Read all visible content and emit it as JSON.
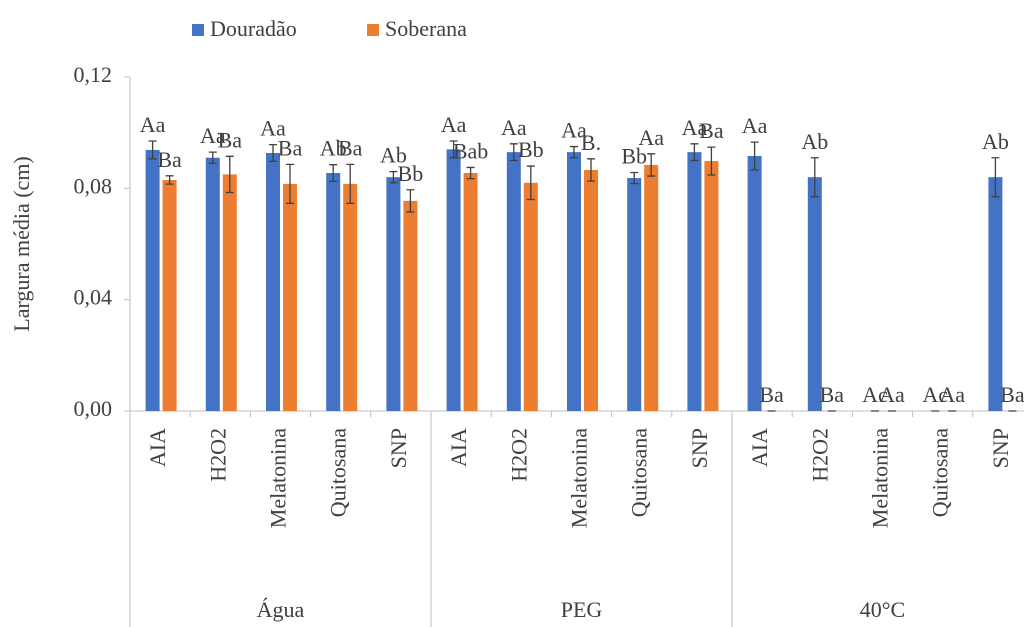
{
  "chart_data": {
    "type": "bar",
    "y_label": "Largura média (cm)",
    "groups": [
      "Água",
      "PEG",
      "40°C"
    ],
    "categories": [
      "AIA",
      "H2O2",
      "Melatonina",
      "Quitosana",
      "SNP",
      "AIA",
      "H2O2",
      "Melatonina",
      "Quitosana",
      "SNP",
      "AIA",
      "H2O2",
      "Melatonina",
      "Quitosana",
      "SNP"
    ],
    "series": [
      {
        "name": "Douradão",
        "color": "#4472c4",
        "values": [
          0.0938,
          0.091,
          0.0927,
          0.0855,
          0.084,
          0.094,
          0.093,
          0.093,
          0.0837,
          0.093,
          0.0916,
          0.084,
          0,
          0,
          0.084
        ],
        "errors": [
          0.0032,
          0.002,
          0.003,
          0.003,
          0.002,
          0.003,
          0.003,
          0.002,
          0.002,
          0.003,
          0.005,
          0.007,
          0,
          0,
          0.007
        ],
        "labels": [
          "Aa",
          "Aa",
          "Aa",
          "Ab",
          "Ab",
          "Aa",
          "Aa",
          "Aa",
          "Bb",
          "Aa",
          "Aa",
          "Ab",
          "Ac",
          "Ac",
          "Ab"
        ]
      },
      {
        "name": "Soberana",
        "color": "#ed7d31",
        "values": [
          0.083,
          0.085,
          0.0816,
          0.0816,
          0.0755,
          0.0855,
          0.082,
          0.0866,
          0.0884,
          0.0898,
          0,
          0,
          0,
          0,
          0
        ],
        "errors": [
          0.0015,
          0.0065,
          0.007,
          0.007,
          0.004,
          0.002,
          0.006,
          0.004,
          0.004,
          0.005,
          0,
          0,
          0,
          0,
          0
        ],
        "labels": [
          "Ba",
          "Ba",
          "Ba",
          "Ba",
          "Bb",
          "Bab",
          "Bb",
          "B.",
          "Aa",
          "Ba",
          "Ba",
          "Ba",
          "Aa",
          "Aa",
          "Ba"
        ]
      }
    ],
    "ylim": [
      0,
      0.12
    ],
    "yticks": [
      {
        "value": 0,
        "label": "0,00"
      },
      {
        "value": 0.04,
        "label": "0,04"
      },
      {
        "value": 0.08,
        "label": "0,08"
      },
      {
        "value": 0.12,
        "label": "0,12"
      }
    ],
    "grid": false
  }
}
